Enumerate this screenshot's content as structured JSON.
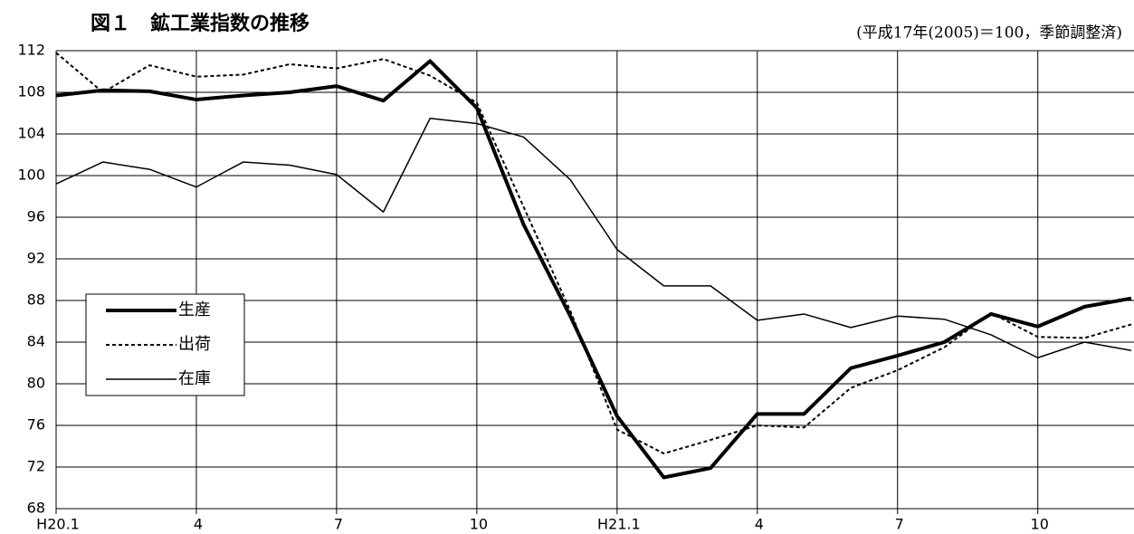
{
  "chart_data": {
    "type": "line",
    "title": "図１　鉱工業指数の推移",
    "subtitle": "(平成17年(2005)＝100，季節調整済)",
    "categories": [
      "H20.1",
      null,
      null,
      "4",
      null,
      null,
      "7",
      null,
      null,
      "10",
      null,
      null,
      "H21.1",
      null,
      null,
      "4",
      null,
      null,
      "7",
      null,
      null,
      "10",
      null,
      null
    ],
    "series": [
      {
        "name": "生産",
        "color": "#000000",
        "line_width": 4,
        "dash": "none",
        "values": [
          107.7,
          108.2,
          108.1,
          107.3,
          107.7,
          108.0,
          108.6,
          107.2,
          111.0,
          106.5,
          95.3,
          86.5,
          76.9,
          71.0,
          71.9,
          77.1,
          77.1,
          81.5,
          82.7,
          84.0,
          86.7,
          85.5,
          87.4,
          88.2
        ]
      },
      {
        "name": "出荷",
        "color": "#000000",
        "line_width": 2,
        "dash": "4 3",
        "values": [
          111.8,
          108.0,
          110.6,
          109.5,
          109.7,
          110.7,
          110.3,
          111.2,
          109.6,
          107.0,
          97.0,
          87.0,
          75.6,
          73.3,
          74.6,
          76.0,
          75.8,
          79.6,
          81.3,
          83.5,
          86.8,
          84.5,
          84.4,
          85.7
        ]
      },
      {
        "name": "在庫",
        "color": "#000000",
        "line_width": 1.5,
        "dash": "none",
        "values": [
          99.2,
          101.3,
          100.6,
          98.9,
          101.3,
          101.0,
          100.1,
          96.5,
          105.5,
          105.0,
          103.7,
          99.6,
          92.9,
          89.4,
          89.4,
          86.1,
          86.7,
          85.4,
          86.5,
          86.2,
          84.7,
          82.5,
          84.0,
          83.2
        ]
      }
    ],
    "ylim": [
      68,
      112
    ],
    "yticks": [
      68,
      72,
      76,
      80,
      84,
      88,
      92,
      96,
      100,
      104,
      108,
      112
    ],
    "grid": true,
    "legend": "left"
  }
}
